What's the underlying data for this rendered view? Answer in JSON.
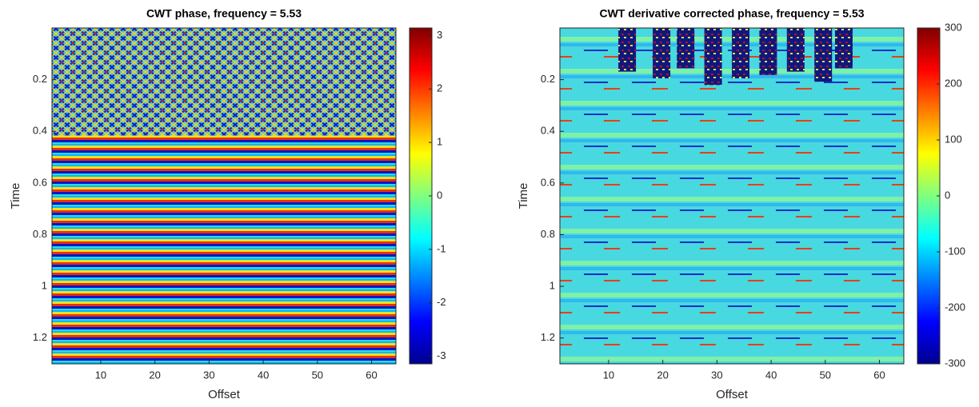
{
  "chart_data": [
    {
      "type": "heatmap",
      "title": "CWT phase, frequency = 5.53",
      "xlabel": "Offset",
      "ylabel": "Time",
      "xlim": [
        1,
        64.5
      ],
      "xticks": [
        10,
        20,
        30,
        40,
        50,
        60
      ],
      "ylim": [
        0,
        1.3
      ],
      "yticks": [
        0.2,
        0.4,
        0.6,
        0.8,
        1,
        1.2
      ],
      "y_reversed": true,
      "colormap": "jet",
      "clim": [
        -3.14,
        3.14
      ],
      "cticks": [
        -3,
        -2,
        -1,
        0,
        1,
        2,
        3
      ]
    },
    {
      "type": "heatmap",
      "title": "CWT derivative corrected phase, frequency = 5.53",
      "xlabel": "Offset",
      "ylabel": "Time",
      "xlim": [
        1,
        64.5
      ],
      "xticks": [
        10,
        20,
        30,
        40,
        50,
        60
      ],
      "ylim": [
        0,
        1.3
      ],
      "yticks": [
        0.2,
        0.4,
        0.6,
        0.8,
        1,
        1.2
      ],
      "y_reversed": true,
      "colormap": "jet",
      "clim": [
        -300,
        300
      ],
      "cticks": [
        -300,
        -200,
        -100,
        0,
        100,
        200,
        300
      ]
    }
  ]
}
